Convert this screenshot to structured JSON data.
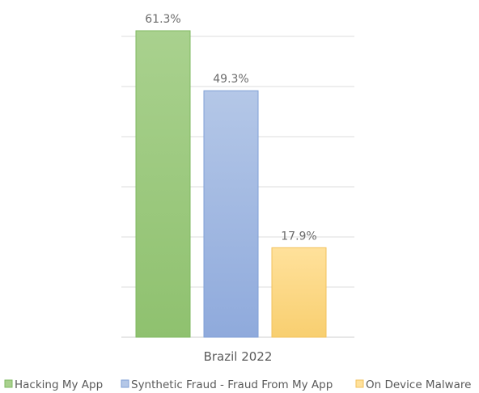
{
  "chart_data": {
    "type": "bar",
    "categories": [
      "Brazil 2022"
    ],
    "series": [
      {
        "name": "Hacking My App",
        "values": [
          61.3
        ],
        "label": "61.3%",
        "color": "#a9d18e",
        "color_dark": "#8fc16f",
        "stroke": "#7fb861"
      },
      {
        "name": "Synthetic Fraud - Fraud From My App",
        "values": [
          49.3
        ],
        "label": "49.3%",
        "color": "#b4c7e7",
        "color_dark": "#8faadc",
        "stroke": "#7f9fd6"
      },
      {
        "name": "On Device Malware",
        "values": [
          17.9
        ],
        "label": "17.9%",
        "color": "#ffe19b",
        "color_dark": "#f8cf70",
        "stroke": "#f2c15c"
      }
    ],
    "ylim": [
      0,
      70
    ],
    "ytick_step": 10,
    "grid": true,
    "legend": "bottom"
  }
}
